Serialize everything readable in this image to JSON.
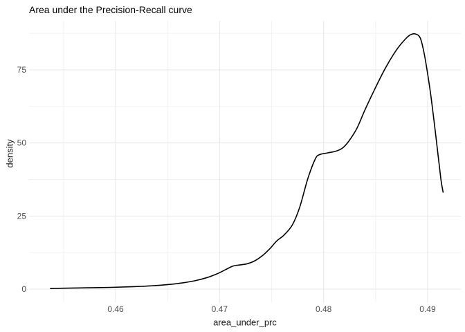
{
  "title": "Area under the Precision-Recall curve",
  "chart_data": {
    "type": "line",
    "title": "Area under the Precision-Recall curve",
    "xlabel": "area_under_prc",
    "ylabel": "density",
    "legend": false,
    "grid": true,
    "xlim": [
      0.4517,
      0.4932
    ],
    "ylim": [
      -4.5,
      91.8
    ],
    "x_ticks": [
      0.46,
      0.47,
      0.48,
      0.49
    ],
    "x_tick_labels": [
      "0.46",
      "0.47",
      "0.48",
      "0.49"
    ],
    "x_minor_ticks": [
      0.455,
      0.465,
      0.475,
      0.485
    ],
    "y_ticks": [
      0,
      25,
      50,
      75
    ],
    "y_tick_labels": [
      "0",
      "25",
      "50",
      "75"
    ],
    "y_minor_ticks": [
      12.5,
      37.5,
      62.5,
      87.5
    ],
    "series": [
      {
        "name": "density",
        "x": [
          0.4537,
          0.455,
          0.4565,
          0.458,
          0.4595,
          0.461,
          0.4625,
          0.464,
          0.4652,
          0.4664,
          0.4676,
          0.4688,
          0.4698,
          0.4706,
          0.4713,
          0.472,
          0.4727,
          0.4734,
          0.4741,
          0.4748,
          0.4755,
          0.4762,
          0.477,
          0.4777,
          0.4785,
          0.4792,
          0.4796,
          0.4804,
          0.4812,
          0.4818,
          0.4824,
          0.4832,
          0.484,
          0.485,
          0.486,
          0.487,
          0.4878,
          0.4883,
          0.4888,
          0.4893,
          0.4897,
          0.4902,
          0.4906,
          0.491,
          0.4913,
          0.4915
        ],
        "y": [
          0.2,
          0.3,
          0.4,
          0.5,
          0.6,
          0.75,
          0.95,
          1.25,
          1.6,
          2.1,
          2.85,
          3.95,
          5.3,
          6.7,
          7.9,
          8.3,
          8.7,
          9.7,
          11.4,
          13.7,
          16.5,
          18.5,
          22.0,
          28.0,
          38.0,
          44.5,
          46.0,
          46.6,
          47.2,
          48.2,
          50.5,
          55.0,
          61.5,
          69.0,
          76.0,
          81.8,
          85.3,
          86.9,
          87.3,
          85.8,
          80.0,
          69.0,
          58.0,
          46.0,
          37.0,
          33.0
        ]
      }
    ],
    "colors": {
      "line": "#000000",
      "grid_major": "#e7e7e7",
      "grid_minor": "#f2f2f2",
      "tick_text": "#4d4d4d",
      "axis_title_text": "#1a1a1a",
      "title_text": "#000000",
      "background": "#ffffff"
    }
  }
}
